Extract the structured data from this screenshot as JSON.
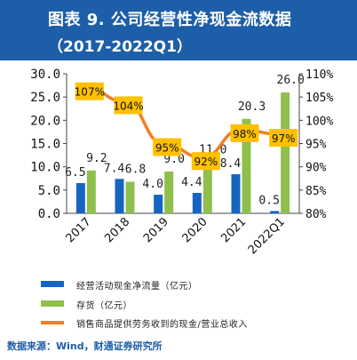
{
  "header": {
    "title_line1": "图表 9.  公司经营性净现金流数据",
    "title_line2": "（2017-2022Q1）"
  },
  "chart_data": {
    "type": "bar+line",
    "categories": [
      "2017",
      "2018",
      "2019",
      "2020",
      "2021",
      "2022Q1"
    ],
    "series": [
      {
        "name": "经营活动现金净流量（亿元）",
        "type": "bar",
        "axis": "left",
        "color": "#1565c0",
        "values": [
          6.5,
          7.4,
          4.0,
          4.4,
          8.4,
          0.5
        ],
        "labels": [
          "6.5",
          "7.4",
          "4.0",
          "4.4",
          "8.4",
          "0.5"
        ]
      },
      {
        "name": "存货（亿元）",
        "type": "bar",
        "axis": "left",
        "color": "#8fbf4d",
        "values": [
          9.2,
          6.8,
          9.0,
          11.0,
          20.3,
          26.0
        ],
        "labels": [
          "9.2",
          "6.8",
          "9.0",
          "11.0",
          "20.3",
          "26.0"
        ]
      },
      {
        "name": "销售商品提供劳务收到的现金/营业总收入",
        "type": "line",
        "axis": "right",
        "color": "#f07f22",
        "values": [
          107,
          104,
          95,
          92,
          98,
          97
        ],
        "labels": [
          "107%",
          "104%",
          "95%",
          "92%",
          "98%",
          "97%"
        ]
      }
    ],
    "y_left": {
      "range": [
        0,
        30
      ],
      "ticks": [
        "0.0",
        "5.0",
        "10.0",
        "15.0",
        "20.0",
        "25.0",
        "30.0"
      ]
    },
    "y_right": {
      "range": [
        80,
        110
      ],
      "ticks": [
        "80%",
        "85%",
        "90%",
        "95%",
        "100%",
        "105%",
        "110%"
      ]
    },
    "legend_position": "bottom",
    "label_box_color": "#ffc000"
  },
  "source": "数据来源：Wind，财通证券研究所"
}
